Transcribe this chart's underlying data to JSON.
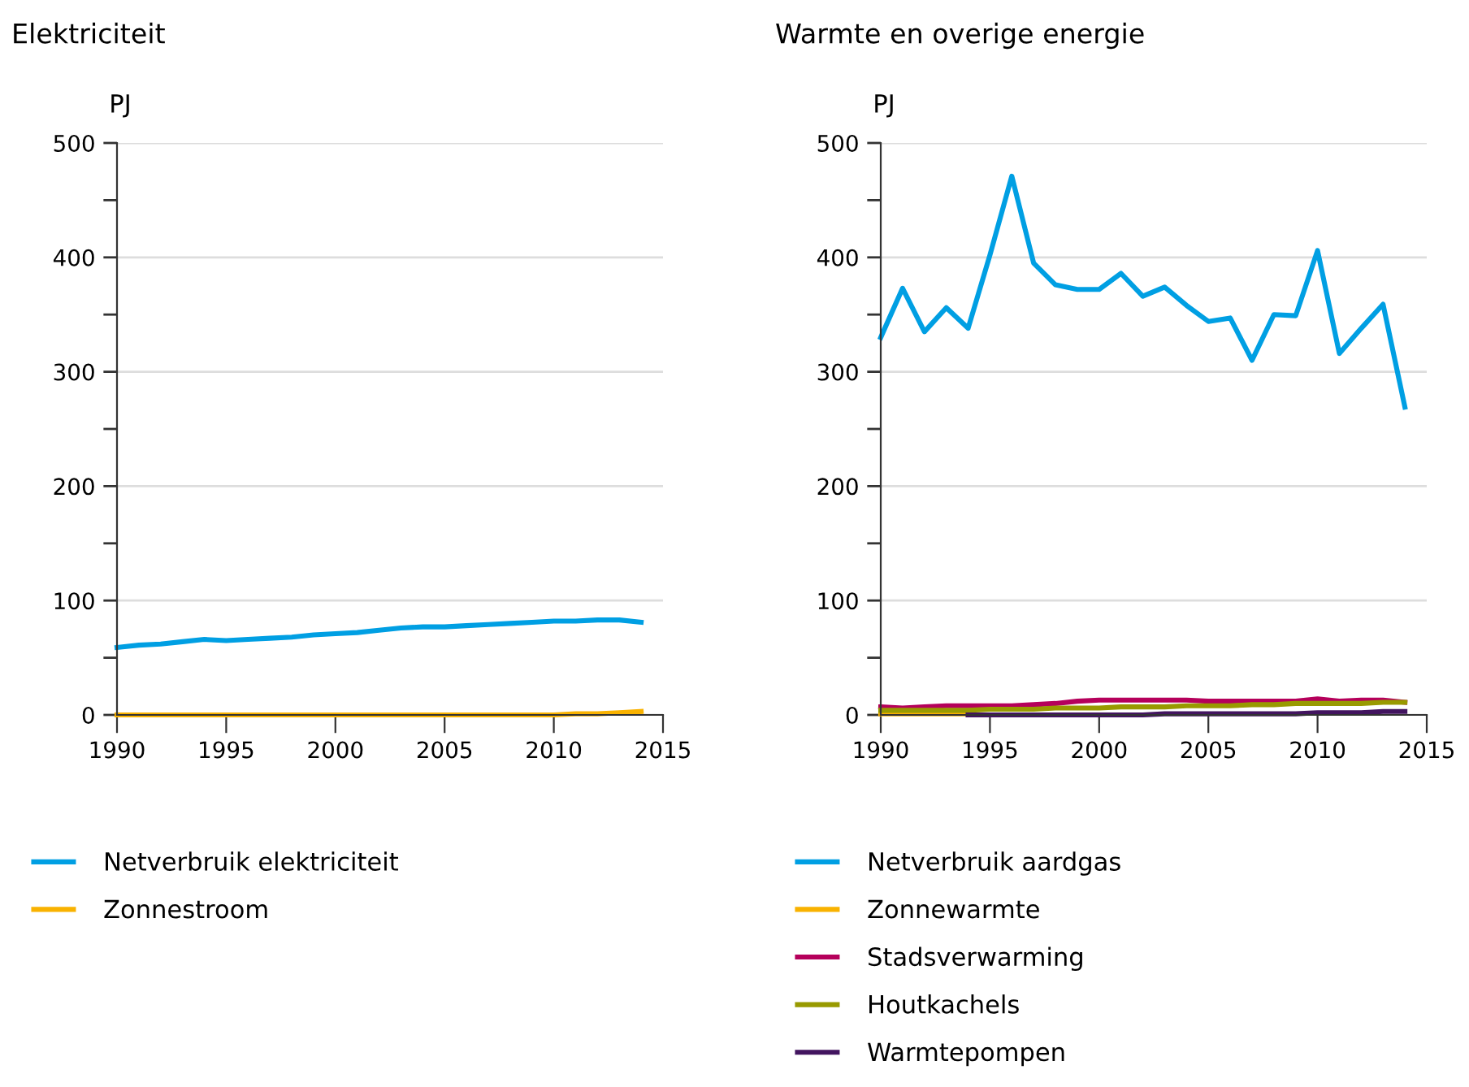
{
  "chart_data": [
    {
      "type": "line",
      "title": "Elektriciteit",
      "ylabel": "PJ",
      "x": [
        1990,
        1991,
        1992,
        1993,
        1994,
        1995,
        1996,
        1997,
        1998,
        1999,
        2000,
        2001,
        2002,
        2003,
        2004,
        2005,
        2006,
        2007,
        2008,
        2009,
        2010,
        2011,
        2012,
        2013,
        2014
      ],
      "xlim": [
        1990,
        2015
      ],
      "xticks": [
        1990,
        1995,
        2000,
        2005,
        2010,
        2015
      ],
      "ylim": [
        0,
        500
      ],
      "yticks": [
        0,
        {
          "value": 50,
          "label": null
        },
        100,
        {
          "value": 150,
          "label": null
        },
        200,
        {
          "value": 250,
          "label": null
        },
        300,
        {
          "value": 350,
          "label": null
        },
        400,
        {
          "value": 450,
          "label": null
        },
        500
      ],
      "grid": "y",
      "legend": "bottom",
      "series": [
        {
          "name": "Netverbruik elektriciteit",
          "color": "#009fe3",
          "values": [
            59,
            61,
            62,
            64,
            66,
            65,
            66,
            67,
            68,
            70,
            71,
            72,
            74,
            76,
            77,
            77,
            78,
            79,
            80,
            81,
            82,
            82,
            83,
            83,
            81
          ]
        },
        {
          "name": "Zonnestroom",
          "color": "#f9b200",
          "values": [
            0,
            0,
            0,
            0,
            0,
            0,
            0,
            0,
            0,
            0,
            0,
            0,
            0,
            0,
            0,
            0,
            0,
            0,
            0,
            0,
            0,
            1,
            1,
            2,
            3
          ]
        }
      ]
    },
    {
      "type": "line",
      "title": "Warmte en overige energie",
      "ylabel": "PJ",
      "x": [
        1990,
        1991,
        1992,
        1993,
        1994,
        1995,
        1996,
        1997,
        1998,
        1999,
        2000,
        2001,
        2002,
        2003,
        2004,
        2005,
        2006,
        2007,
        2008,
        2009,
        2010,
        2011,
        2012,
        2013,
        2014
      ],
      "xlim": [
        1990,
        2015
      ],
      "xticks": [
        1990,
        1995,
        2000,
        2005,
        2010,
        2015
      ],
      "ylim": [
        0,
        500
      ],
      "yticks": [
        0,
        {
          "value": 50,
          "label": null
        },
        100,
        {
          "value": 150,
          "label": null
        },
        200,
        {
          "value": 250,
          "label": null
        },
        300,
        {
          "value": 350,
          "label": null
        },
        400,
        {
          "value": 450,
          "label": null
        },
        500
      ],
      "grid": "y",
      "legend": "bottom",
      "series": [
        {
          "name": "Netverbruik aardgas",
          "color": "#009fe3",
          "values": [
            330,
            373,
            335,
            356,
            338,
            402,
            471,
            395,
            376,
            372,
            372,
            386,
            366,
            374,
            358,
            344,
            347,
            310,
            350,
            349,
            406,
            316,
            338,
            359,
            269
          ]
        },
        {
          "name": "Zonnewarmte",
          "color": "#f9b200",
          "values": [
            1,
            1,
            1,
            1,
            1,
            null,
            null,
            null,
            null,
            null,
            null,
            null,
            null,
            null,
            null,
            null,
            null,
            null,
            null,
            null,
            null,
            null,
            null,
            null,
            null
          ]
        },
        {
          "name": "Stadsverwarming",
          "color": "#b5005b",
          "values": [
            7,
            6,
            7,
            8,
            8,
            8,
            8,
            9,
            10,
            12,
            13,
            13,
            13,
            13,
            13,
            12,
            12,
            12,
            12,
            12,
            14,
            12,
            13,
            13,
            11
          ]
        },
        {
          "name": "Houtkachels",
          "color": "#989a00",
          "values": [
            4,
            4,
            4,
            4,
            4,
            5,
            5,
            5,
            6,
            6,
            6,
            7,
            7,
            7,
            8,
            8,
            8,
            9,
            9,
            10,
            10,
            10,
            10,
            11,
            11
          ]
        },
        {
          "name": "Warmtepompen",
          "color": "#42145f",
          "values": [
            null,
            null,
            null,
            null,
            0,
            0,
            0,
            0,
            0,
            0,
            0,
            0,
            0,
            1,
            1,
            1,
            1,
            1,
            1,
            1,
            2,
            2,
            2,
            3,
            3
          ]
        }
      ]
    }
  ]
}
